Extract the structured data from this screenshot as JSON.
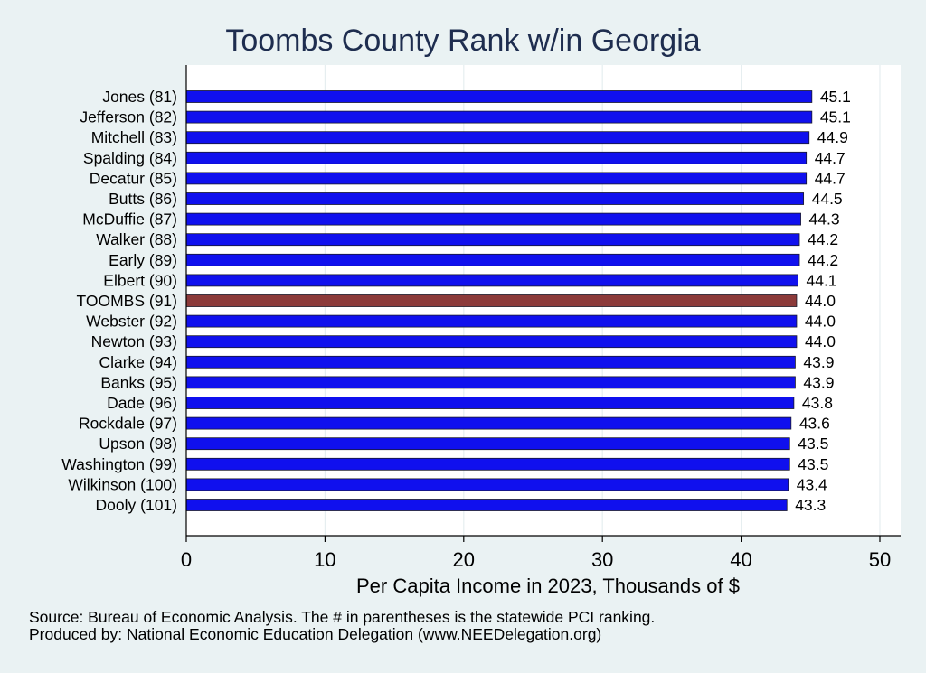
{
  "chart_data": {
    "type": "bar",
    "orientation": "horizontal",
    "title": "Toombs County Rank w/in Georgia",
    "xlabel": "Per Capita Income in 2023, Thousands of $",
    "xlim": [
      0,
      51.5
    ],
    "xticks": [
      0,
      10,
      20,
      30,
      40,
      50
    ],
    "grid": true,
    "categories": [
      "Jones (81)",
      "Jefferson (82)",
      "Mitchell (83)",
      "Spalding (84)",
      "Decatur (85)",
      "Butts (86)",
      "McDuffie (87)",
      "Walker (88)",
      "Early (89)",
      "Elbert (90)",
      "TOOMBS (91)",
      "Webster (92)",
      "Newton (93)",
      "Clarke (94)",
      "Banks (95)",
      "Dade (96)",
      "Rockdale (97)",
      "Upson (98)",
      "Washington (99)",
      "Wilkinson (100)",
      "Dooly (101)"
    ],
    "values": [
      45.1,
      45.1,
      44.9,
      44.7,
      44.7,
      44.5,
      44.3,
      44.2,
      44.2,
      44.1,
      44.0,
      44.0,
      44.0,
      43.9,
      43.9,
      43.8,
      43.6,
      43.5,
      43.5,
      43.4,
      43.3
    ],
    "value_labels": [
      "45.1",
      "45.1",
      "44.9",
      "44.7",
      "44.7",
      "44.5",
      "44.3",
      "44.2",
      "44.2",
      "44.1",
      "44.0",
      "44.0",
      "44.0",
      "43.9",
      "43.9",
      "43.8",
      "43.6",
      "43.5",
      "43.5",
      "43.4",
      "43.3"
    ],
    "highlight_category": "TOOMBS (91)",
    "colors": {
      "bar": "#1010ee",
      "highlight": "#8c3a3a",
      "plot_bg": "#ffffff",
      "page_bg": "#eaf2f3",
      "grid": "#e6eef0"
    }
  },
  "footer": {
    "source": "Source: Bureau of Economic Analysis. The # in parentheses is the statewide PCI ranking.",
    "producer": "Produced by: National Economic Education Delegation (www.NEEDelegation.org)"
  }
}
